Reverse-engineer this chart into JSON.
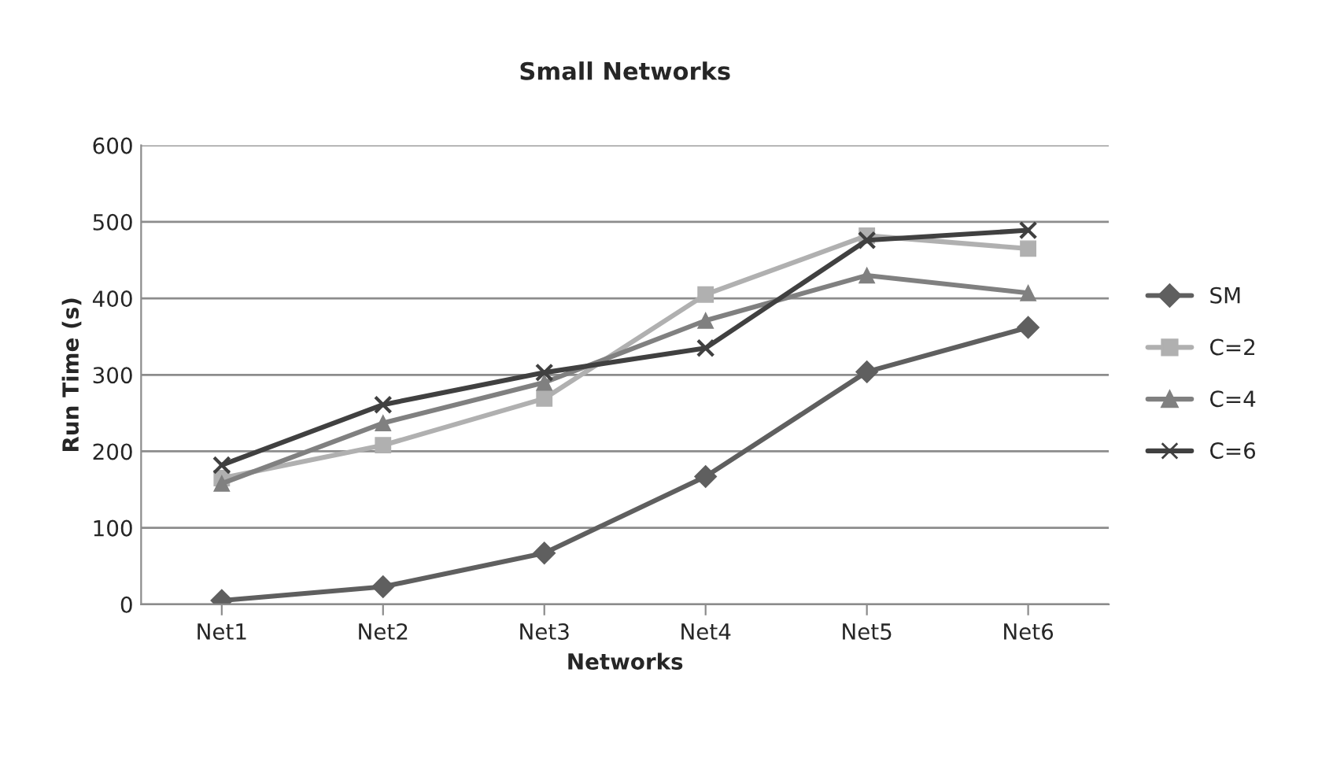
{
  "chart_data": {
    "type": "line",
    "title": "Small Networks",
    "xlabel": "Networks",
    "ylabel": "Run Time (s)",
    "categories": [
      "Net1",
      "Net2",
      "Net3",
      "Net4",
      "Net5",
      "Net6"
    ],
    "series": [
      {
        "name": "SM",
        "color": "#5f5f5f",
        "marker": "diamond",
        "values": [
          5,
          23,
          67,
          167,
          304,
          362
        ]
      },
      {
        "name": "C=2",
        "color": "#b0b0b0",
        "marker": "square",
        "values": [
          165,
          208,
          269,
          405,
          482,
          465
        ]
      },
      {
        "name": "C=4",
        "color": "#808080",
        "marker": "triangle",
        "values": [
          158,
          237,
          290,
          371,
          430,
          407
        ]
      },
      {
        "name": "C=6",
        "color": "#404040",
        "marker": "cross",
        "values": [
          182,
          261,
          303,
          335,
          476,
          489
        ]
      }
    ],
    "ylim": [
      0,
      600
    ],
    "yticks": [
      0,
      100,
      200,
      300,
      400,
      500,
      600
    ],
    "grid": "y",
    "legend": "right"
  }
}
